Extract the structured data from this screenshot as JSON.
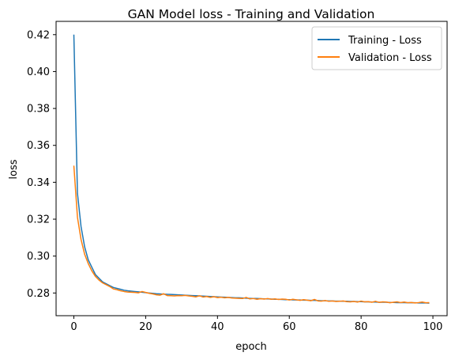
{
  "chart_data": {
    "type": "line",
    "title": "GAN Model loss - Training and Validation",
    "xlabel": "epoch",
    "ylabel": "loss",
    "xlim": [
      -4.95,
      103.95
    ],
    "ylim": [
      0.2677,
      0.4272
    ],
    "xticks": [
      0,
      20,
      40,
      60,
      80,
      100
    ],
    "yticks": [
      0.28,
      0.3,
      0.32,
      0.34,
      0.36,
      0.38,
      0.4,
      0.42
    ],
    "ytick_labels": [
      "0.28",
      "0.30",
      "0.32",
      "0.34",
      "0.36",
      "0.38",
      "0.40",
      "0.42"
    ],
    "xtick_labels": [
      "0",
      "20",
      "40",
      "60",
      "80",
      "100"
    ],
    "grid": false,
    "legend_position": "top-right",
    "colors": {
      "training": "#1f77b4",
      "validation": "#ff7f0e"
    },
    "series": [
      {
        "name": "Training - Loss",
        "color": "#1f77b4",
        "x": [
          0,
          1,
          2,
          3,
          4,
          5,
          6,
          7,
          8,
          9,
          10,
          11,
          12,
          13,
          14,
          15,
          16,
          17,
          18,
          19,
          20,
          21,
          22,
          23,
          24,
          25,
          26,
          27,
          28,
          29,
          30,
          31,
          32,
          33,
          34,
          35,
          36,
          37,
          38,
          39,
          40,
          41,
          42,
          43,
          44,
          45,
          46,
          47,
          48,
          49,
          50,
          51,
          52,
          53,
          54,
          55,
          56,
          57,
          58,
          59,
          60,
          61,
          62,
          63,
          64,
          65,
          66,
          67,
          68,
          69,
          70,
          71,
          72,
          73,
          74,
          75,
          76,
          77,
          78,
          79,
          80,
          81,
          82,
          83,
          84,
          85,
          86,
          87,
          88,
          89,
          90,
          91,
          92,
          93,
          94,
          95,
          96,
          97,
          98,
          99
        ],
        "values": [
          0.42,
          0.334,
          0.316,
          0.305,
          0.298,
          0.294,
          0.29,
          0.288,
          0.286,
          0.285,
          0.284,
          0.283,
          0.2825,
          0.282,
          0.2815,
          0.2812,
          0.281,
          0.2808,
          0.2806,
          0.2804,
          0.2802,
          0.28,
          0.2798,
          0.2796,
          0.2795,
          0.2794,
          0.2793,
          0.2792,
          0.2791,
          0.279,
          0.2789,
          0.2788,
          0.2787,
          0.2786,
          0.2785,
          0.2784,
          0.2783,
          0.2782,
          0.2781,
          0.278,
          0.2779,
          0.2778,
          0.2777,
          0.2776,
          0.2775,
          0.2774,
          0.2774,
          0.2773,
          0.2772,
          0.2771,
          0.277,
          0.277,
          0.2769,
          0.2768,
          0.2768,
          0.2767,
          0.2766,
          0.2766,
          0.2765,
          0.2764,
          0.2764,
          0.2763,
          0.2762,
          0.2762,
          0.2761,
          0.2761,
          0.276,
          0.276,
          0.2759,
          0.2758,
          0.2758,
          0.2757,
          0.2757,
          0.2756,
          0.2756,
          0.2755,
          0.2755,
          0.2754,
          0.2754,
          0.2753,
          0.2753,
          0.2752,
          0.2752,
          0.2751,
          0.2751,
          0.275,
          0.275,
          0.275,
          0.2749,
          0.2749,
          0.2748,
          0.2748,
          0.2748,
          0.2747,
          0.2747,
          0.2747,
          0.2746,
          0.2746,
          0.2746,
          0.2745
        ]
      },
      {
        "name": "Validation - Loss",
        "color": "#ff7f0e",
        "x": [
          0,
          1,
          2,
          3,
          4,
          5,
          6,
          7,
          8,
          9,
          10,
          11,
          12,
          13,
          14,
          15,
          16,
          17,
          18,
          19,
          20,
          21,
          22,
          23,
          24,
          25,
          26,
          27,
          28,
          29,
          30,
          31,
          32,
          33,
          34,
          35,
          36,
          37,
          38,
          39,
          40,
          41,
          42,
          43,
          44,
          45,
          46,
          47,
          48,
          49,
          50,
          51,
          52,
          53,
          54,
          55,
          56,
          57,
          58,
          59,
          60,
          61,
          62,
          63,
          64,
          65,
          66,
          67,
          68,
          69,
          70,
          71,
          72,
          73,
          74,
          75,
          76,
          77,
          78,
          79,
          80,
          81,
          82,
          83,
          84,
          85,
          86,
          87,
          88,
          89,
          90,
          91,
          92,
          93,
          94,
          95,
          96,
          97,
          98,
          99
        ],
        "values": [
          0.349,
          0.321,
          0.309,
          0.301,
          0.296,
          0.292,
          0.289,
          0.287,
          0.2855,
          0.2845,
          0.2835,
          0.2822,
          0.2818,
          0.2812,
          0.2808,
          0.2805,
          0.2804,
          0.2803,
          0.2801,
          0.2808,
          0.2803,
          0.2798,
          0.2795,
          0.279,
          0.2788,
          0.2796,
          0.2786,
          0.2785,
          0.2784,
          0.2786,
          0.2785,
          0.2787,
          0.2784,
          0.2782,
          0.2779,
          0.2785,
          0.2778,
          0.2781,
          0.2776,
          0.278,
          0.2775,
          0.2777,
          0.2774,
          0.2776,
          0.2773,
          0.2772,
          0.2771,
          0.277,
          0.2776,
          0.2768,
          0.277,
          0.2766,
          0.2769,
          0.2767,
          0.277,
          0.2766,
          0.2768,
          0.2765,
          0.2767,
          0.2766,
          0.2762,
          0.2766,
          0.2763,
          0.276,
          0.2764,
          0.2761,
          0.2758,
          0.2765,
          0.2757,
          0.2756,
          0.2759,
          0.2755,
          0.2757,
          0.2754,
          0.2755,
          0.2757,
          0.2753,
          0.2752,
          0.2754,
          0.2751,
          0.2756,
          0.2752,
          0.2753,
          0.275,
          0.2755,
          0.2749,
          0.2752,
          0.2751,
          0.2747,
          0.275,
          0.2752,
          0.2748,
          0.2751,
          0.2747,
          0.2749,
          0.2746,
          0.2748,
          0.2751,
          0.2747,
          0.2748
        ]
      }
    ]
  }
}
